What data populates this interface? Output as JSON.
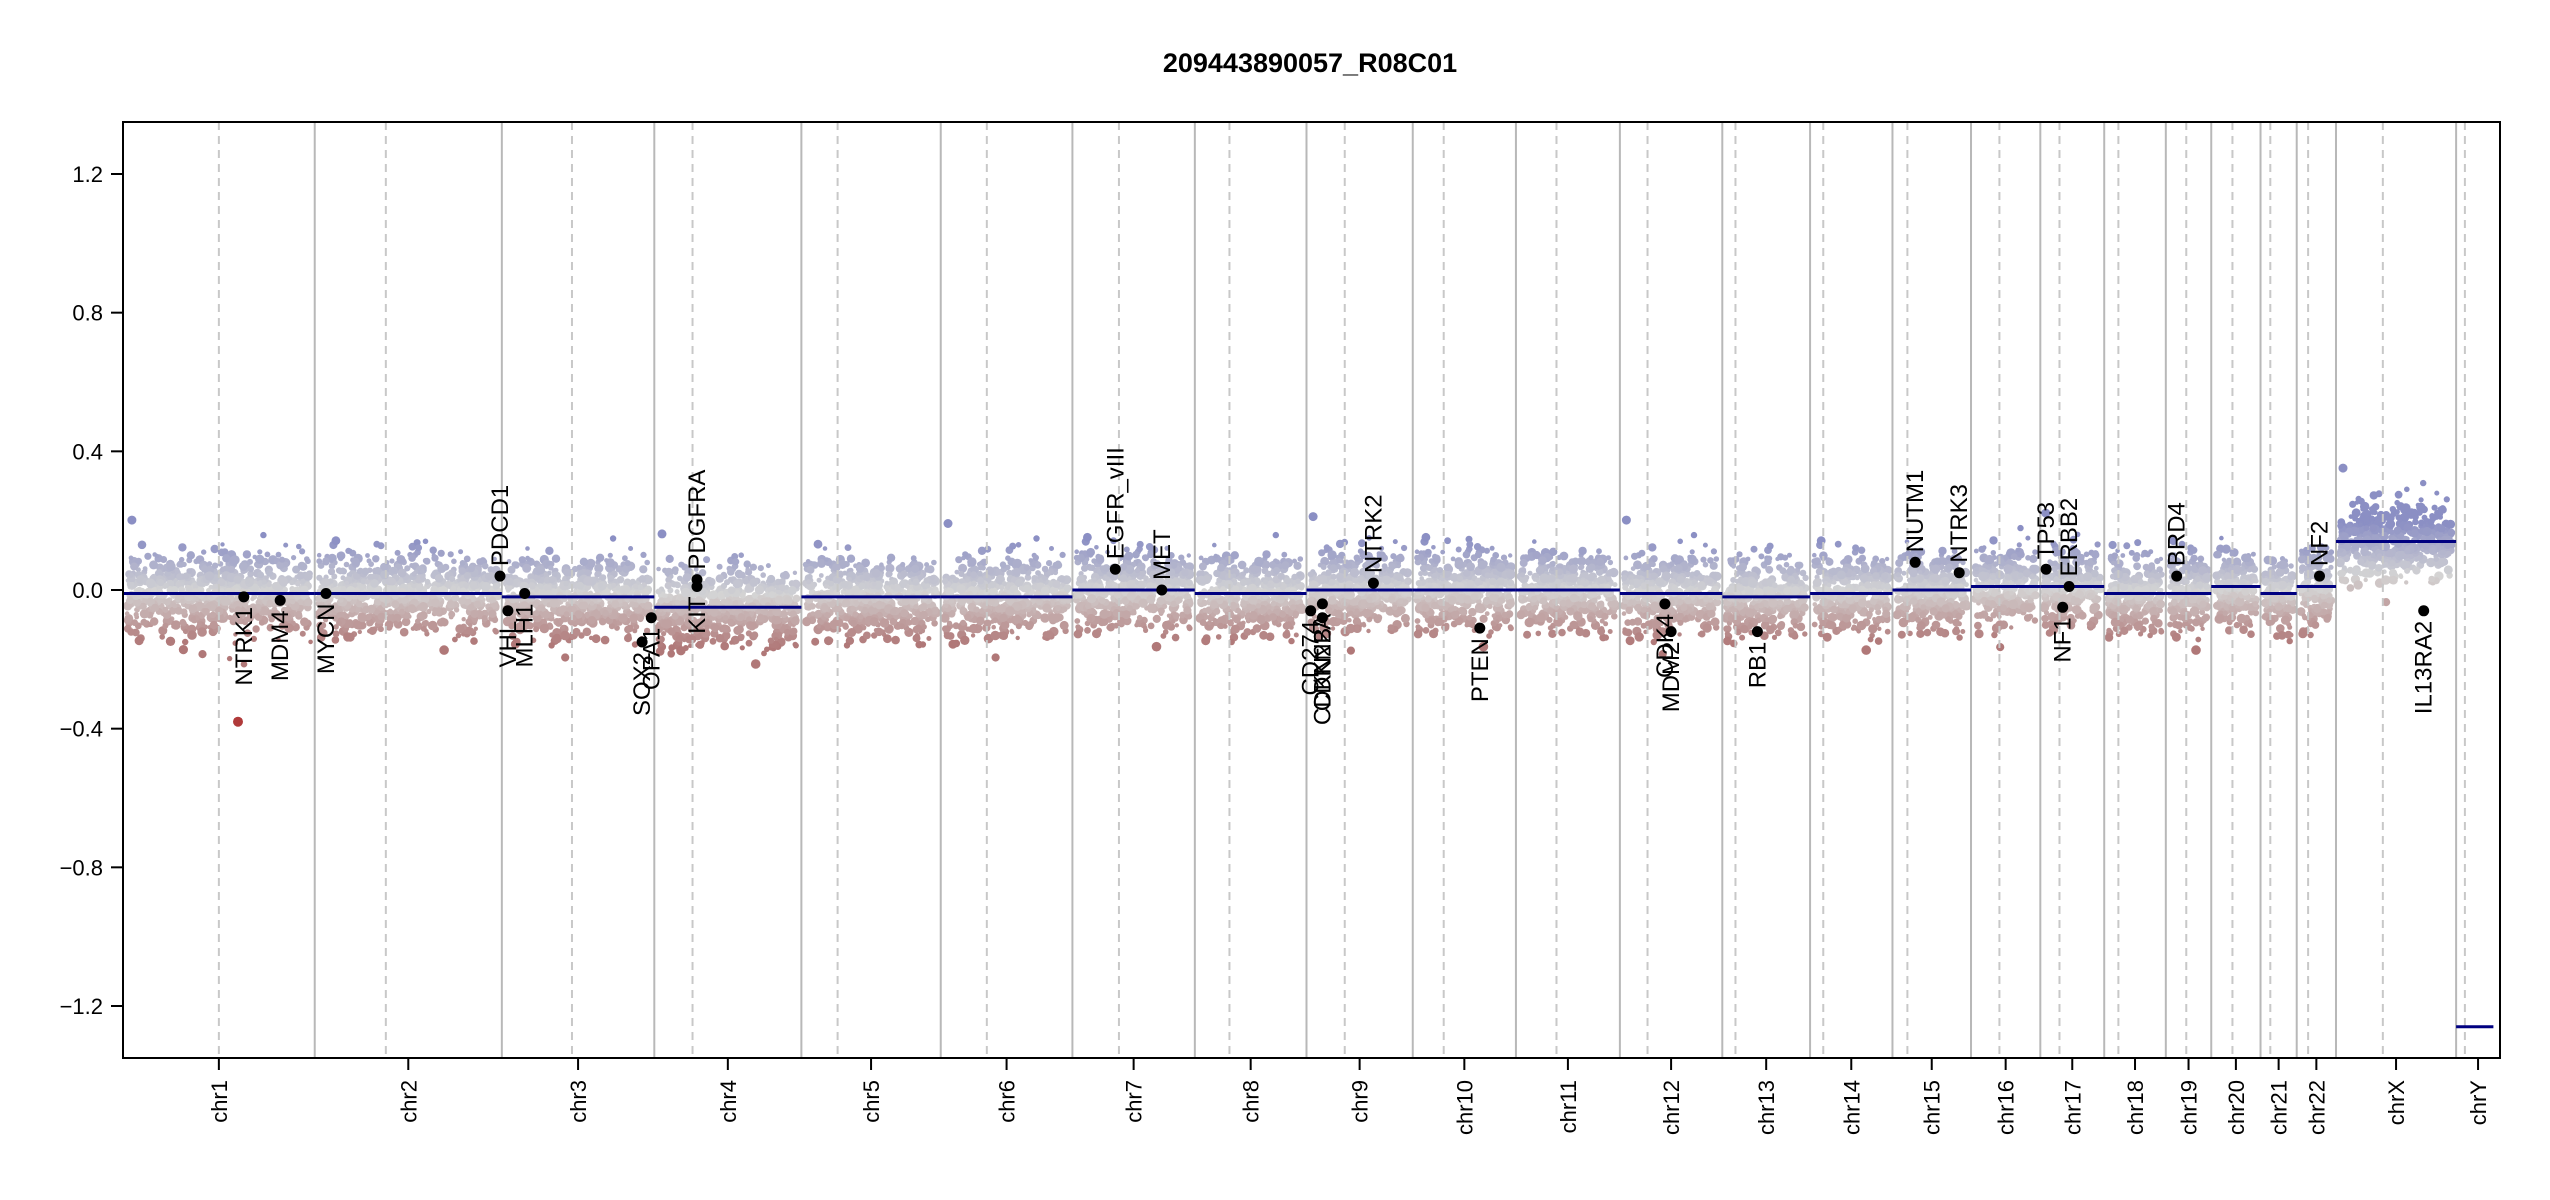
{
  "chart_data": {
    "type": "scatter",
    "title": "209443890057_R08C01",
    "xlabel": "",
    "ylabel": "",
    "ylim": [
      -1.35,
      1.35
    ],
    "yticks": [
      1.2,
      0.8,
      0.4,
      0.0,
      -0.4,
      -0.8,
      -1.2
    ],
    "ytick_labels": [
      "1.2",
      "0.8",
      "0.4",
      "0.0",
      "−0.4",
      "−0.8",
      "−1.2"
    ],
    "chromosomes": [
      {
        "name": "chr1",
        "length": 249,
        "centromere": 0.5
      },
      {
        "name": "chr2",
        "length": 243,
        "centromere": 0.38
      },
      {
        "name": "chr3",
        "length": 198,
        "centromere": 0.46
      },
      {
        "name": "chr4",
        "length": 191,
        "centromere": 0.26
      },
      {
        "name": "chr5",
        "length": 181,
        "centromere": 0.26
      },
      {
        "name": "chr6",
        "length": 171,
        "centromere": 0.35
      },
      {
        "name": "chr7",
        "length": 159,
        "centromere": 0.38
      },
      {
        "name": "chr8",
        "length": 145,
        "centromere": 0.31
      },
      {
        "name": "chr9",
        "length": 138,
        "centromere": 0.36
      },
      {
        "name": "chr10",
        "length": 134,
        "centromere": 0.3
      },
      {
        "name": "chr11",
        "length": 135,
        "centromere": 0.39
      },
      {
        "name": "chr12",
        "length": 133,
        "centromere": 0.27
      },
      {
        "name": "chr13",
        "length": 114,
        "centromere": 0.15
      },
      {
        "name": "chr14",
        "length": 107,
        "centromere": 0.16
      },
      {
        "name": "chr15",
        "length": 102,
        "centromere": 0.19
      },
      {
        "name": "chr16",
        "length": 90,
        "centromere": 0.41
      },
      {
        "name": "chr17",
        "length": 83,
        "centromere": 0.3
      },
      {
        "name": "chr18",
        "length": 80,
        "centromere": 0.23
      },
      {
        "name": "chr19",
        "length": 59,
        "centromere": 0.45
      },
      {
        "name": "chr20",
        "length": 64,
        "centromere": 0.43
      },
      {
        "name": "chr21",
        "length": 47,
        "centromere": 0.27
      },
      {
        "name": "chr22",
        "length": 51,
        "centromere": 0.29
      },
      {
        "name": "chrX",
        "length": 156,
        "centromere": 0.39
      },
      {
        "name": "chrY",
        "length": 57,
        "centromere": 0.2
      }
    ],
    "segments": [
      {
        "chr": "chr1",
        "start": 0.0,
        "end": 1.0,
        "value": -0.01
      },
      {
        "chr": "chr2",
        "start": 0.0,
        "end": 1.0,
        "value": -0.01
      },
      {
        "chr": "chr3",
        "start": 0.0,
        "end": 1.0,
        "value": -0.02
      },
      {
        "chr": "chr4",
        "start": 0.0,
        "end": 1.0,
        "value": -0.05
      },
      {
        "chr": "chr5",
        "start": 0.0,
        "end": 1.0,
        "value": -0.02
      },
      {
        "chr": "chr6",
        "start": 0.0,
        "end": 1.0,
        "value": -0.02
      },
      {
        "chr": "chr7",
        "start": 0.0,
        "end": 1.0,
        "value": 0.0
      },
      {
        "chr": "chr8",
        "start": 0.0,
        "end": 1.0,
        "value": -0.01
      },
      {
        "chr": "chr9",
        "start": 0.0,
        "end": 1.0,
        "value": 0.0
      },
      {
        "chr": "chr10",
        "start": 0.0,
        "end": 1.0,
        "value": 0.0
      },
      {
        "chr": "chr11",
        "start": 0.0,
        "end": 1.0,
        "value": 0.0
      },
      {
        "chr": "chr12",
        "start": 0.0,
        "end": 1.0,
        "value": -0.01
      },
      {
        "chr": "chr13",
        "start": 0.0,
        "end": 1.0,
        "value": -0.02
      },
      {
        "chr": "chr14",
        "start": 0.0,
        "end": 1.0,
        "value": -0.01
      },
      {
        "chr": "chr15",
        "start": 0.0,
        "end": 1.0,
        "value": 0.0
      },
      {
        "chr": "chr16",
        "start": 0.0,
        "end": 1.0,
        "value": 0.01
      },
      {
        "chr": "chr17",
        "start": 0.0,
        "end": 1.0,
        "value": 0.01
      },
      {
        "chr": "chr18",
        "start": 0.0,
        "end": 1.0,
        "value": -0.01
      },
      {
        "chr": "chr19",
        "start": 0.0,
        "end": 1.0,
        "value": -0.01
      },
      {
        "chr": "chr20",
        "start": 0.0,
        "end": 1.0,
        "value": 0.01
      },
      {
        "chr": "chr21",
        "start": 0.0,
        "end": 1.0,
        "value": -0.01
      },
      {
        "chr": "chr22",
        "start": 0.0,
        "end": 1.0,
        "value": 0.01
      },
      {
        "chr": "chrX",
        "start": 0.0,
        "end": 1.0,
        "value": 0.14
      },
      {
        "chr": "chrY",
        "start": 0.0,
        "end": 0.85,
        "value": -1.26
      }
    ],
    "genes": [
      {
        "name": "NTRK1",
        "chr": "chr1",
        "pos": 0.63,
        "value": -0.02,
        "label_side": "below"
      },
      {
        "name": "MDM4",
        "chr": "chr1",
        "pos": 0.82,
        "value": -0.03,
        "label_side": "below"
      },
      {
        "name": "MYCN",
        "chr": "chr2",
        "pos": 0.06,
        "value": -0.01,
        "label_side": "below"
      },
      {
        "name": "PDCD1",
        "chr": "chr2",
        "pos": 0.99,
        "value": 0.04,
        "label_side": "above"
      },
      {
        "name": "VHL",
        "chr": "chr3",
        "pos": 0.04,
        "value": -0.06,
        "label_side": "below"
      },
      {
        "name": "MLH1",
        "chr": "chr3",
        "pos": 0.15,
        "value": -0.01,
        "label_side": "below"
      },
      {
        "name": "SOX2",
        "chr": "chr3",
        "pos": 0.92,
        "value": -0.15,
        "label_side": "below"
      },
      {
        "name": "OPA1",
        "chr": "chr3",
        "pos": 0.98,
        "value": -0.08,
        "label_side": "below"
      },
      {
        "name": "KIT",
        "chr": "chr4",
        "pos": 0.29,
        "value": 0.01,
        "label_side": "below"
      },
      {
        "name": "PDGFRA",
        "chr": "chr4",
        "pos": 0.29,
        "value": 0.03,
        "label_side": "above"
      },
      {
        "name": "EGFR_vIII",
        "chr": "chr7",
        "pos": 0.35,
        "value": 0.06,
        "label_side": "above"
      },
      {
        "name": "MET",
        "chr": "chr7",
        "pos": 0.73,
        "value": 0.0,
        "label_side": "above"
      },
      {
        "name": "CD274",
        "chr": "chr9",
        "pos": 0.04,
        "value": -0.06,
        "label_side": "below"
      },
      {
        "name": "CDKN2A",
        "chr": "chr9",
        "pos": 0.15,
        "value": -0.04,
        "label_side": "below"
      },
      {
        "name": "CDKN2B",
        "chr": "chr9",
        "pos": 0.15,
        "value": -0.08,
        "label_side": "below"
      },
      {
        "name": "NTRK2",
        "chr": "chr9",
        "pos": 0.63,
        "value": 0.02,
        "label_side": "above"
      },
      {
        "name": "PTEN",
        "chr": "chr10",
        "pos": 0.65,
        "value": -0.11,
        "label_side": "below"
      },
      {
        "name": "CDK4",
        "chr": "chr12",
        "pos": 0.44,
        "value": -0.04,
        "label_side": "below"
      },
      {
        "name": "MDM2",
        "chr": "chr12",
        "pos": 0.5,
        "value": -0.12,
        "label_side": "below"
      },
      {
        "name": "RB1",
        "chr": "chr13",
        "pos": 0.4,
        "value": -0.12,
        "label_side": "below"
      },
      {
        "name": "NUTM1",
        "chr": "chr15",
        "pos": 0.29,
        "value": 0.08,
        "label_side": "above"
      },
      {
        "name": "NTRK3",
        "chr": "chr15",
        "pos": 0.85,
        "value": 0.05,
        "label_side": "above"
      },
      {
        "name": "TP53",
        "chr": "chr17",
        "pos": 0.09,
        "value": 0.06,
        "label_side": "above"
      },
      {
        "name": "NF1",
        "chr": "chr17",
        "pos": 0.35,
        "value": -0.05,
        "label_side": "below"
      },
      {
        "name": "ERBB2",
        "chr": "chr17",
        "pos": 0.45,
        "value": 0.01,
        "label_side": "above"
      },
      {
        "name": "BRD4",
        "chr": "chr19",
        "pos": 0.24,
        "value": 0.04,
        "label_side": "above"
      },
      {
        "name": "NF2",
        "chr": "chr22",
        "pos": 0.58,
        "value": 0.04,
        "label_side": "above"
      },
      {
        "name": "IL13RA2",
        "chr": "chrX",
        "pos": 0.73,
        "value": -0.06,
        "label_side": "below"
      }
    ],
    "colors": {
      "gain": "#8b8fc4",
      "loss": "#b07878",
      "neutral": "#d4d4d4",
      "segment": "#000080",
      "chr_divider": "#b8b8b8",
      "centromere": "#c8c8c8",
      "gene_point": "#000000",
      "highlight_loss": "#b03a3a"
    },
    "grid": false,
    "legend": "none"
  }
}
